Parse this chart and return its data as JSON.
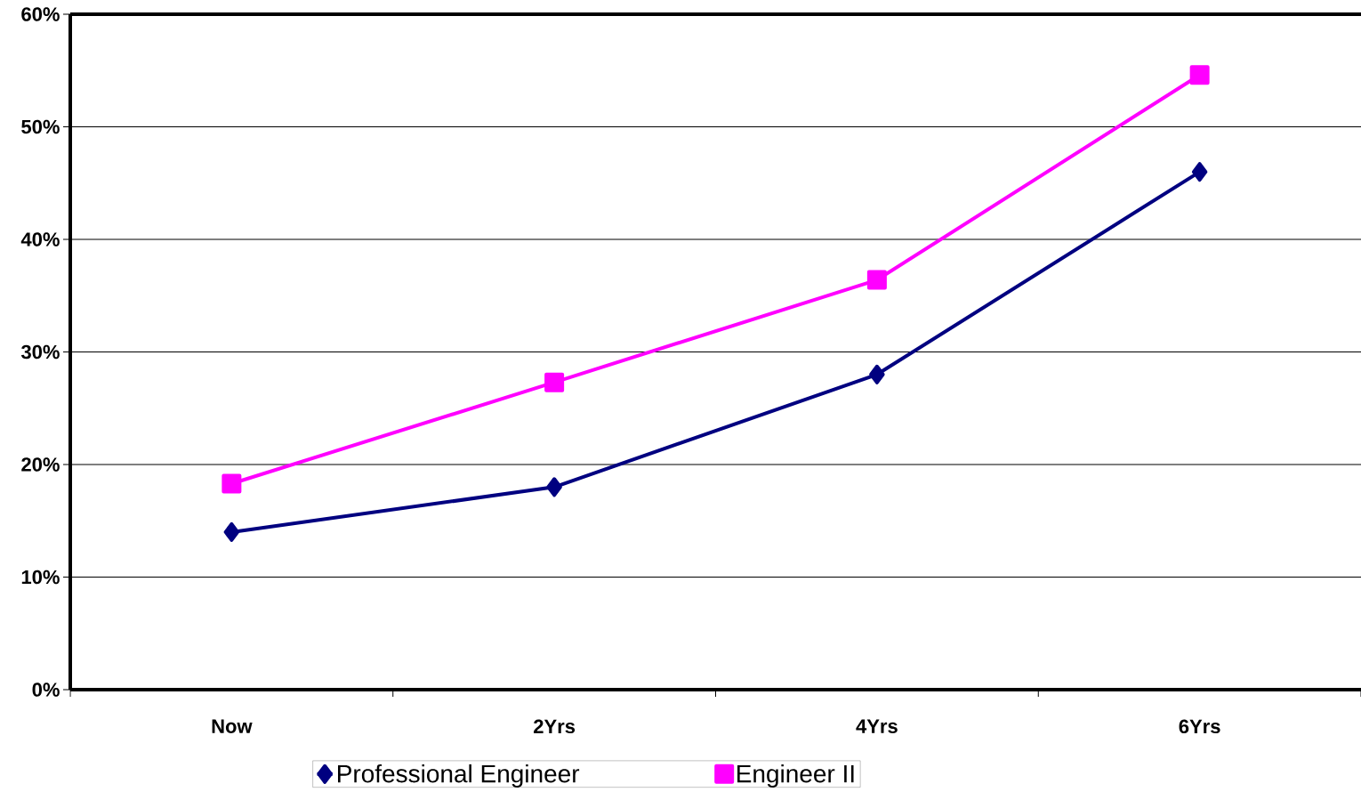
{
  "chart_data": {
    "type": "line",
    "categories": [
      "Now",
      "2Yrs",
      "4Yrs",
      "6Yrs"
    ],
    "series": [
      {
        "name": "Professional Engineer",
        "color": "#000080",
        "marker": "diamond",
        "values": [
          14,
          18,
          28,
          46
        ]
      },
      {
        "name": "Engineer II",
        "color": "#ff00ff",
        "marker": "square",
        "values": [
          18.3,
          27.3,
          36.4,
          54.6
        ]
      }
    ],
    "ylim": [
      0,
      60
    ],
    "yticks": [
      {
        "value": 0,
        "label": "0%"
      },
      {
        "value": 10,
        "label": "10%"
      },
      {
        "value": 20,
        "label": "20%"
      },
      {
        "value": 30,
        "label": "30%"
      },
      {
        "value": 40,
        "label": "40%"
      },
      {
        "value": 50,
        "label": "50%"
      },
      {
        "value": 60,
        "label": "60%"
      }
    ],
    "grid": "y",
    "legend": "bottom",
    "line_style": "solid"
  }
}
